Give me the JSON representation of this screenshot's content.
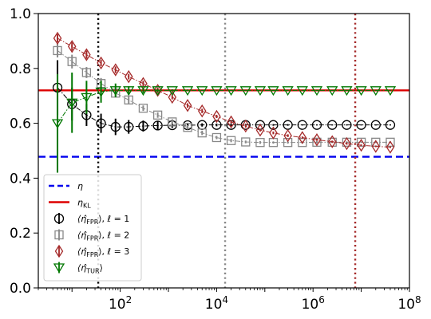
{
  "chart_data": {
    "type": "scatter",
    "xscale": "log",
    "xlim": [
      2,
      100000000
    ],
    "ylim": [
      0.0,
      1.0
    ],
    "xticks": [
      {
        "value": 100,
        "base": "10",
        "exp": "2"
      },
      {
        "value": 10000,
        "base": "10",
        "exp": "4"
      },
      {
        "value": 1000000,
        "base": "10",
        "exp": "6"
      },
      {
        "value": 100000000,
        "base": "10",
        "exp": "8"
      }
    ],
    "yticks": [
      "0.0",
      "0.2",
      "0.4",
      "0.6",
      "0.8",
      "1.0"
    ],
    "grid": false,
    "legend_position": "lower-left",
    "hlines": [
      {
        "name": "η",
        "y": 0.478,
        "color": "#0000ee",
        "style": "dashed"
      },
      {
        "name": "η_KL",
        "y": 0.72,
        "color": "#dd0000",
        "style": "solid"
      }
    ],
    "vlines": [
      {
        "x": 35,
        "color": "#000000",
        "style": "dotted"
      },
      {
        "x": 15000,
        "color": "#888888",
        "style": "dotted"
      },
      {
        "x": 7500000,
        "color": "#a52a2a",
        "style": "dotted"
      }
    ],
    "series": [
      {
        "name": "⟨η̂_FPR⟩, ℓ = 1",
        "color": "#000000",
        "marker": "circle",
        "x": [
          5,
          10,
          20,
          40,
          80,
          150,
          300,
          600,
          1200,
          2500,
          5000,
          10000,
          20000,
          40000,
          80000,
          150000,
          300000,
          600000,
          1200000,
          2500000,
          5000000,
          10000000,
          20000000,
          40000000
        ],
        "y": [
          0.73,
          0.67,
          0.63,
          0.6,
          0.587,
          0.587,
          0.59,
          0.592,
          0.593,
          0.593,
          0.594,
          0.594,
          0.594,
          0.594,
          0.594,
          0.594,
          0.594,
          0.594,
          0.594,
          0.594,
          0.594,
          0.594,
          0.594,
          0.594
        ],
        "yerr": [
          0.1,
          0.06,
          0.04,
          0.035,
          0.03,
          0.025,
          0.02,
          0.015,
          0.01,
          0.008,
          0.006,
          0.005,
          0.004,
          0.004,
          0.003,
          0.003,
          0.003,
          0.002,
          0.002,
          0.002,
          0.002,
          0.002,
          0.002,
          0.002
        ]
      },
      {
        "name": "⟨η̂_FPR⟩, ℓ = 2",
        "color": "#888888",
        "marker": "square",
        "x": [
          5,
          10,
          20,
          40,
          80,
          150,
          300,
          600,
          1200,
          2500,
          5000,
          10000,
          20000,
          40000,
          80000,
          150000,
          300000,
          600000,
          1200000,
          2500000,
          5000000,
          10000000,
          20000000,
          40000000
        ],
        "y": [
          0.865,
          0.825,
          0.785,
          0.745,
          0.71,
          0.685,
          0.655,
          0.63,
          0.605,
          0.585,
          0.565,
          0.548,
          0.537,
          0.532,
          0.53,
          0.53,
          0.53,
          0.53,
          0.531,
          0.531,
          0.531,
          0.531,
          0.531,
          0.531
        ],
        "yerr": [
          0.025,
          0.025,
          0.02,
          0.02,
          0.015,
          0.015,
          0.01,
          0.01,
          0.01,
          0.008,
          0.008,
          0.006,
          0.006,
          0.005,
          0.005,
          0.004,
          0.004,
          0.004,
          0.004,
          0.003,
          0.003,
          0.003,
          0.003,
          0.003
        ]
      },
      {
        "name": "⟨η̂_FPR⟩, ℓ = 3",
        "color": "#a52a2a",
        "marker": "diamond",
        "x": [
          5,
          10,
          20,
          40,
          80,
          150,
          300,
          600,
          1200,
          2500,
          5000,
          10000,
          20000,
          40000,
          80000,
          150000,
          300000,
          600000,
          1200000,
          2500000,
          5000000,
          10000000,
          20000000,
          40000000
        ],
        "y": [
          0.91,
          0.88,
          0.85,
          0.82,
          0.795,
          0.77,
          0.745,
          0.72,
          0.695,
          0.665,
          0.645,
          0.625,
          0.605,
          0.59,
          0.575,
          0.565,
          0.555,
          0.548,
          0.54,
          0.533,
          0.526,
          0.52,
          0.516,
          0.513
        ],
        "yerr": [
          0.015,
          0.015,
          0.015,
          0.012,
          0.012,
          0.01,
          0.01,
          0.01,
          0.008,
          0.008,
          0.008,
          0.006,
          0.006,
          0.006,
          0.005,
          0.005,
          0.005,
          0.004,
          0.004,
          0.004,
          0.004,
          0.003,
          0.003,
          0.003
        ]
      },
      {
        "name": "⟨η̂_TUR⟩",
        "color": "#007700",
        "marker": "triangle-down",
        "x": [
          5,
          10,
          20,
          40,
          80,
          150,
          300,
          600,
          1200,
          2500,
          5000,
          10000,
          20000,
          40000,
          80000,
          150000,
          300000,
          600000,
          1200000,
          2500000,
          5000000,
          10000000,
          20000000,
          40000000
        ],
        "y": [
          0.6,
          0.675,
          0.695,
          0.715,
          0.72,
          0.72,
          0.72,
          0.72,
          0.72,
          0.72,
          0.72,
          0.72,
          0.72,
          0.72,
          0.72,
          0.72,
          0.72,
          0.72,
          0.72,
          0.72,
          0.72,
          0.72,
          0.72,
          0.72
        ],
        "yerr": [
          0.18,
          0.11,
          0.06,
          0.04,
          0.025,
          0.015,
          0.01,
          0.005,
          0.004,
          0.003,
          0.002,
          0.002,
          0.002,
          0.002,
          0.002,
          0.002,
          0.002,
          0.002,
          0.002,
          0.002,
          0.002,
          0.002,
          0.002,
          0.002
        ]
      }
    ]
  },
  "legend": {
    "items": [
      {
        "id": "eta",
        "sym": "η",
        "sub": ""
      },
      {
        "id": "eta_kl",
        "sym": "η",
        "sub": "KL"
      },
      {
        "id": "fpr1",
        "sym": "⟨η̂",
        "sub": "FPR",
        "tail": "⟩, ℓ = 1"
      },
      {
        "id": "fpr2",
        "sym": "⟨η̂",
        "sub": "FPR",
        "tail": "⟩, ℓ = 2"
      },
      {
        "id": "fpr3",
        "sym": "⟨η̂",
        "sub": "FPR",
        "tail": "⟩, ℓ = 3"
      },
      {
        "id": "tur",
        "sym": "⟨η̂",
        "sub": "TUR",
        "tail": "⟩"
      }
    ]
  }
}
